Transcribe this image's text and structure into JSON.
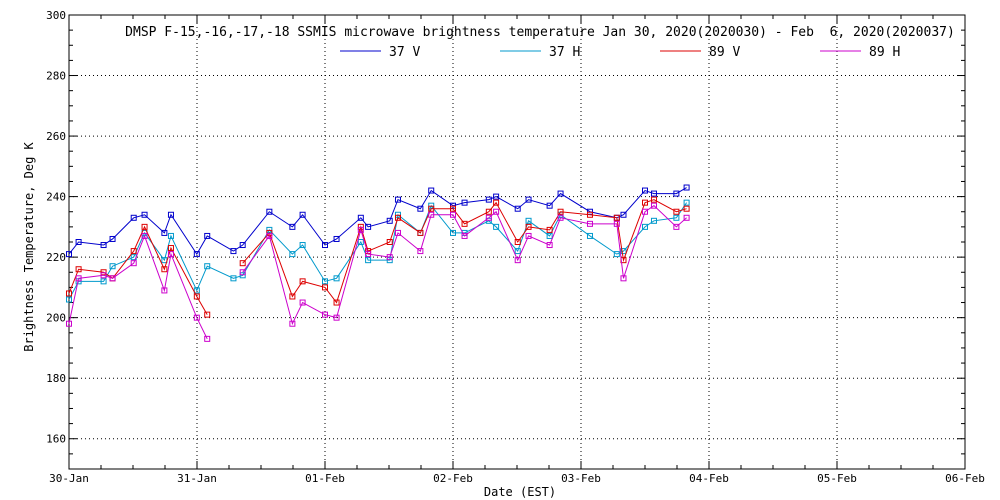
{
  "chart_data": {
    "type": "line",
    "title": "DMSP F-15,-16,-17,-18 SSMIS microwave brightness temperature Jan 30, 2020(2020030) - Feb  6, 2020(2020037)",
    "xlabel": "Date (EST)",
    "ylabel": "Brightness Temperature, Deg K",
    "xlim": [
      "2020-01-30T00:00",
      "2020-02-06T00:00"
    ],
    "ylim": [
      150,
      300
    ],
    "x_ticks": [
      "30-Jan",
      "31-Jan",
      "01-Feb",
      "02-Feb",
      "03-Feb",
      "04-Feb",
      "05-Feb",
      "06-Feb"
    ],
    "y_ticks": [
      "160",
      "180",
      "200",
      "220",
      "240",
      "260",
      "280",
      "300"
    ],
    "grid": true,
    "legend_position": "top",
    "x": [
      "2020-01-30T00:00",
      "2020-01-30T01:48",
      "2020-01-30T06:29",
      "2020-01-30T08:10",
      "2020-01-30T12:08",
      "2020-01-30T14:10",
      "2020-01-30T17:53",
      "2020-01-30T19:07",
      "2020-01-30T23:58",
      "2020-01-31T01:55",
      "2020-01-31T06:50",
      "2020-01-31T08:34",
      "2020-01-31T13:34",
      "2020-01-31T17:53",
      "2020-01-31T19:48",
      "2020-02-01T00:00",
      "2020-02-01T02:10",
      "2020-02-01T06:43",
      "2020-02-01T08:05",
      "2020-02-01T12:08",
      "2020-02-01T13:41",
      "2020-02-01T17:53",
      "2020-02-01T19:55",
      "2020-02-02T00:00",
      "2020-02-02T02:10",
      "2020-02-02T06:43",
      "2020-02-02T08:05",
      "2020-02-02T12:08",
      "2020-02-02T14:10",
      "2020-02-02T18:07",
      "2020-02-02T20:10",
      "2020-02-03T01:41",
      "2020-02-03T06:43",
      "2020-02-03T07:58",
      "2020-02-03T12:00",
      "2020-02-03T13:41",
      "2020-02-03T17:53",
      "2020-02-03T19:48"
    ],
    "series": [
      {
        "name": "37 V",
        "color": "#0000cc",
        "values": [
          221,
          225,
          224,
          226,
          233,
          234,
          228,
          234,
          221,
          227,
          222,
          224,
          235,
          230,
          234,
          224,
          226,
          233,
          230,
          232,
          239,
          236,
          242,
          237,
          238,
          239,
          240,
          236,
          239,
          237,
          241,
          235,
          233,
          234,
          242,
          241,
          241,
          243
        ]
      },
      {
        "name": "37 H",
        "color": "#0099cc",
        "values": [
          206,
          212,
          212,
          217,
          220,
          228,
          219,
          227,
          209,
          217,
          213,
          214,
          229,
          221,
          224,
          212,
          213,
          225,
          219,
          219,
          234,
          228,
          237,
          228,
          228,
          232,
          230,
          222,
          232,
          227,
          234,
          227,
          221,
          222,
          230,
          232,
          233,
          238
        ]
      },
      {
        "name": "89 V",
        "color": "#dd0000",
        "values": [
          208,
          216,
          215,
          213,
          222,
          230,
          216,
          223,
          207,
          201,
          null,
          218,
          228,
          207,
          212,
          210,
          205,
          230,
          222,
          225,
          233,
          228,
          236,
          236,
          231,
          235,
          238,
          225,
          230,
          229,
          235,
          234,
          233,
          219,
          238,
          239,
          235,
          236
        ]
      },
      {
        "name": "89 H",
        "color": "#cc00cc",
        "values": [
          198,
          213,
          214,
          213,
          218,
          227,
          209,
          221,
          200,
          193,
          null,
          215,
          227,
          198,
          205,
          201,
          200,
          229,
          221,
          220,
          228,
          222,
          234,
          234,
          227,
          233,
          235,
          219,
          227,
          224,
          233,
          231,
          231,
          213,
          235,
          237,
          230,
          233
        ]
      }
    ]
  }
}
